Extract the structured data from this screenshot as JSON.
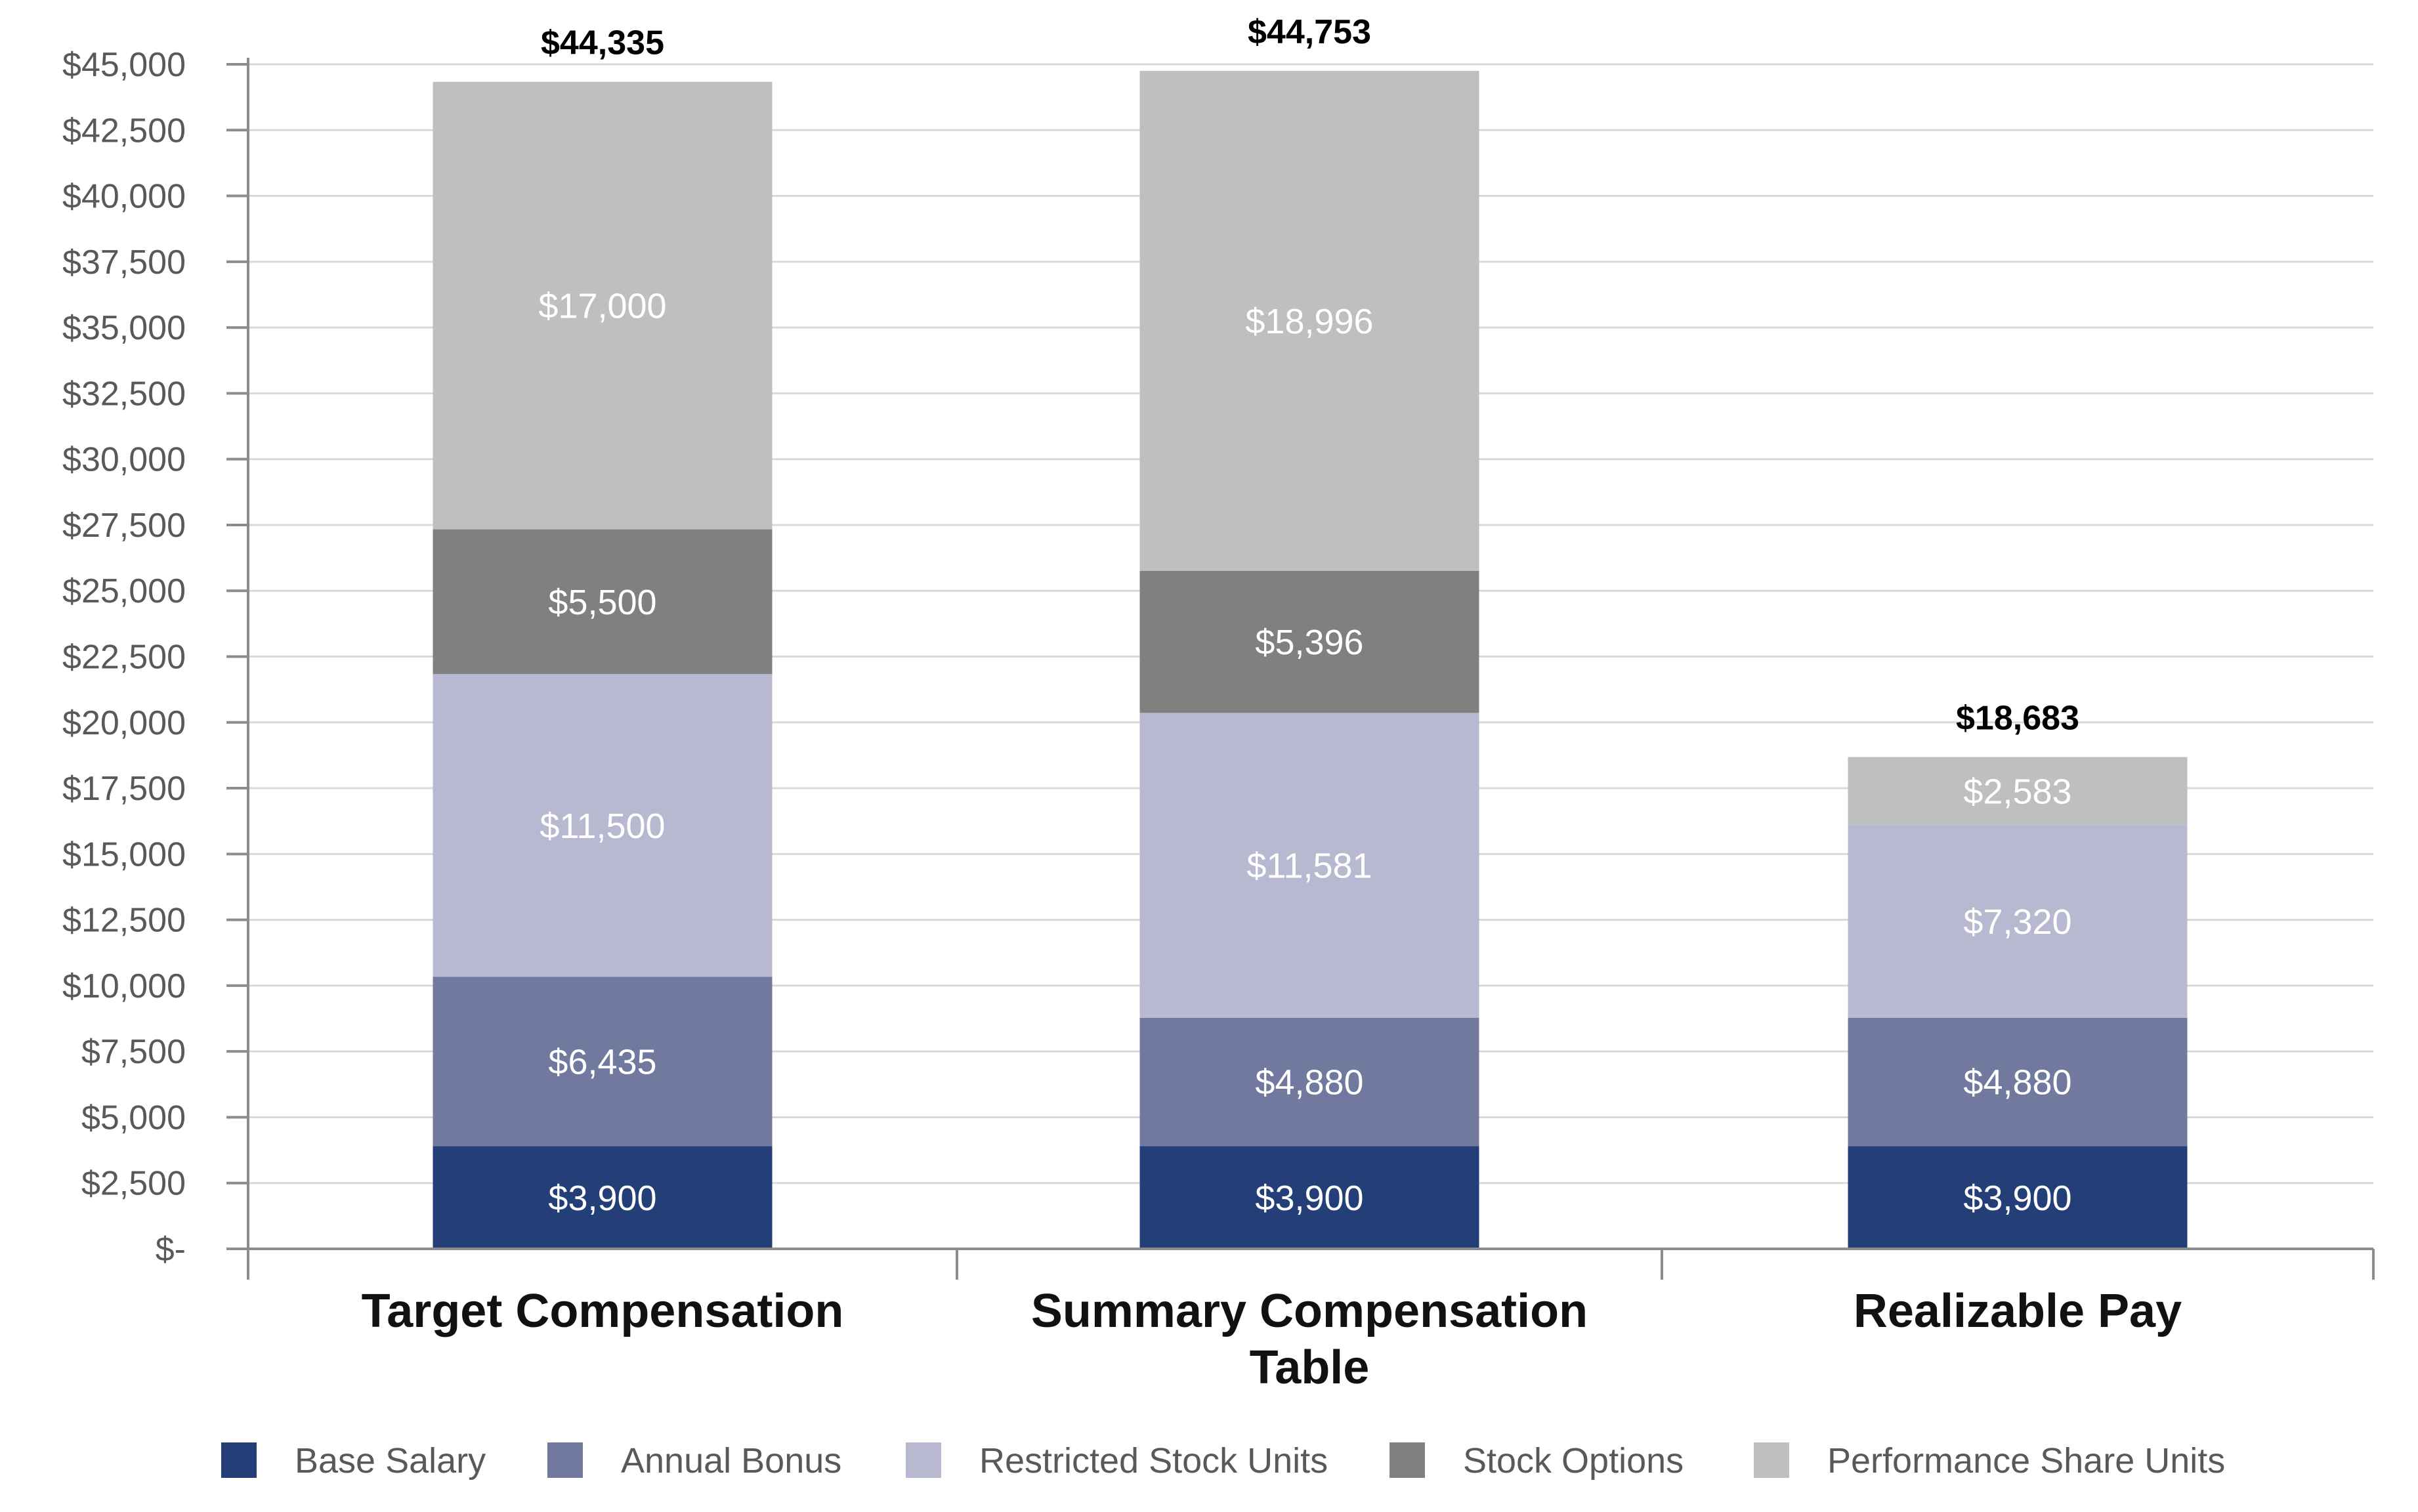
{
  "chart_data": {
    "type": "bar",
    "stacked": true,
    "title": "",
    "xlabel": "",
    "ylabel": "",
    "ylim": [
      0,
      45000
    ],
    "y_ticks": [
      0,
      2500,
      5000,
      7500,
      10000,
      12500,
      15000,
      17500,
      20000,
      22500,
      25000,
      27500,
      30000,
      32500,
      35000,
      37500,
      40000,
      42500,
      45000
    ],
    "y_tick_labels": [
      "$-",
      "$2,500",
      "$5,000",
      "$7,500",
      "$10,000",
      "$12,500",
      "$15,000",
      "$17,500",
      "$20,000",
      "$22,500",
      "$25,000",
      "$27,500",
      "$30,000",
      "$32,500",
      "$35,000",
      "$37,500",
      "$40,000",
      "$42,500",
      "$45,000"
    ],
    "categories": [
      [
        "Target Compensation"
      ],
      [
        "Summary Compensation",
        "Table"
      ],
      [
        "Realizable Pay"
      ]
    ],
    "grid": true,
    "legend_position": "bottom",
    "series": [
      {
        "name": "Base Salary",
        "color": "#243f78",
        "values": [
          3900,
          3900,
          3900
        ],
        "labels": [
          "$3,900",
          "$3,900",
          "$3,900"
        ]
      },
      {
        "name": "Annual Bonus",
        "color": "#71799e",
        "values": [
          6435,
          4880,
          4880
        ],
        "labels": [
          "$6,435",
          "$4,880",
          "$4,880"
        ]
      },
      {
        "name": "Restricted Stock Units",
        "color": "#b8b9d0",
        "values": [
          11500,
          11581,
          7320
        ],
        "labels": [
          "$11,500",
          "$11,581",
          "$7,320"
        ]
      },
      {
        "name": "Stock Options",
        "color": "#808080",
        "values": [
          5500,
          5396,
          0
        ],
        "labels": [
          "$5,500",
          "$5,396",
          ""
        ]
      },
      {
        "name": "Performance Share Units",
        "color": "#bebfc1",
        "values": [
          17000,
          18996,
          2583
        ],
        "labels": [
          "$17,000",
          "$18,996",
          "$2,583"
        ]
      }
    ],
    "totals": [
      44335,
      44753,
      18683
    ],
    "total_labels": [
      "$44,335",
      "$44,753",
      "$18,683"
    ]
  }
}
